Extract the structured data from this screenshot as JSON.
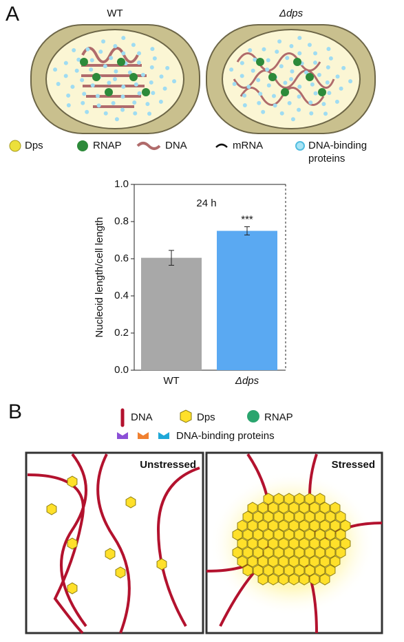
{
  "panel_a": {
    "label": "A",
    "cells": [
      "WT",
      "Δdps"
    ],
    "legend": [
      "Dps",
      "RNAP",
      "DNA",
      "mRNA",
      "DNA-binding",
      "proteins"
    ]
  },
  "chart_data": {
    "type": "bar",
    "annotation": "24 h",
    "significance": "***",
    "y_label": "Nucleoid length/cell length",
    "categories": [
      "WT",
      "Δdps"
    ],
    "values": [
      0.605,
      0.75
    ],
    "errors": [
      0.04,
      0.022
    ],
    "colors": [
      "#a8a8a8",
      "#5aa9f2"
    ],
    "ylim": [
      0,
      1.0
    ],
    "yticks": [
      {
        "value": 0,
        "label": "0.0"
      },
      {
        "value": 0.2,
        "label": "0.2"
      },
      {
        "value": 0.4,
        "label": "0.4"
      },
      {
        "value": 0.6,
        "label": "0.6"
      },
      {
        "value": 0.8,
        "label": "0.8"
      },
      {
        "value": 1.0,
        "label": "1.0"
      }
    ]
  },
  "panel_b": {
    "label": "B",
    "legend": [
      "DNA",
      "Dps",
      "RNAP",
      "DNA-binding proteins"
    ],
    "boxes": [
      "Unstressed",
      "Stressed"
    ]
  }
}
